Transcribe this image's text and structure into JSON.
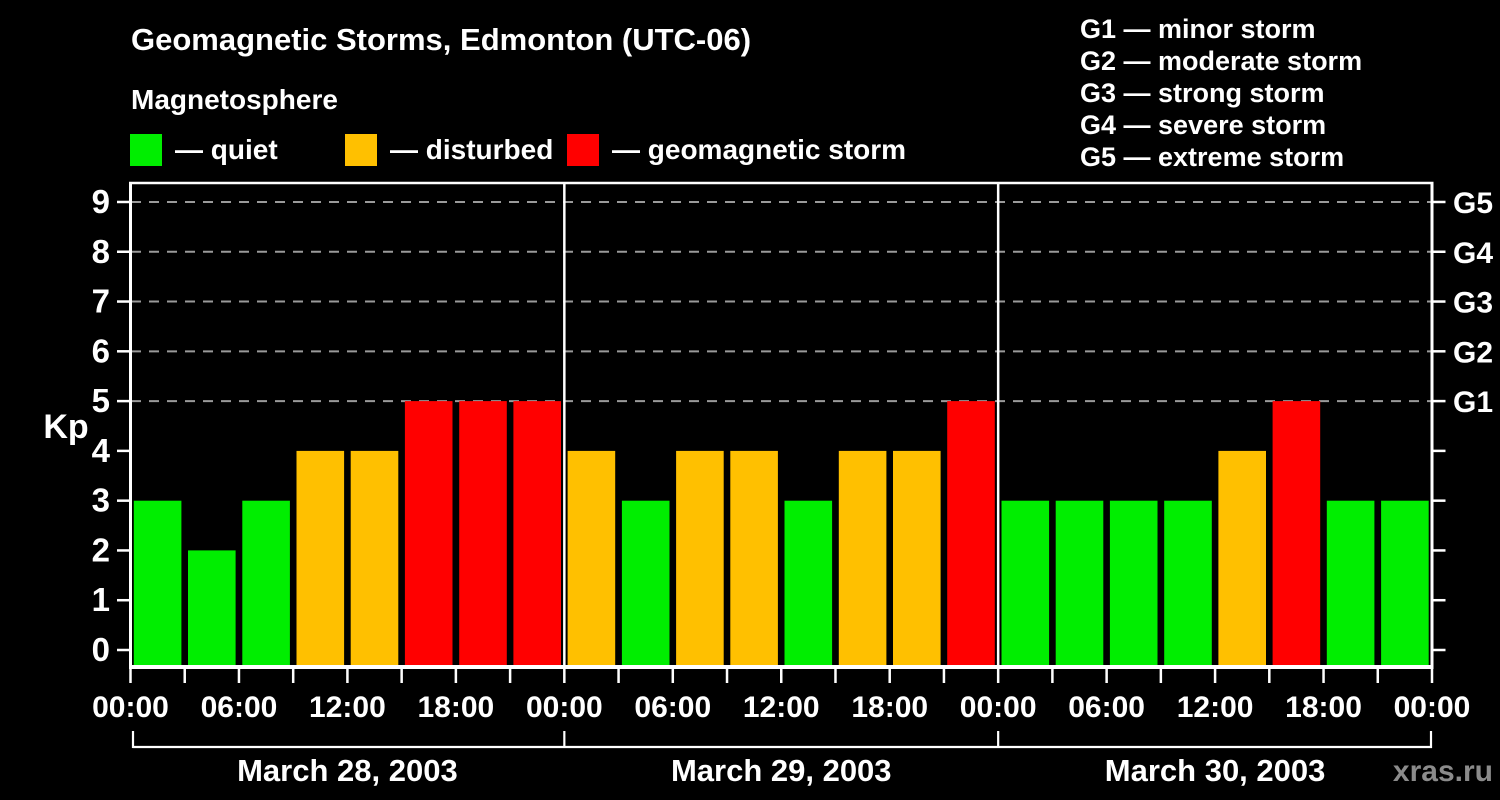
{
  "watermark": "xras.ru",
  "chart_data": {
    "type": "bar",
    "title": "Geomagnetic Storms, Edmonton (UTC-06)",
    "subtitle": "Magnetosphere",
    "ylabel": "Kp",
    "ylim": [
      0,
      9.3
    ],
    "yticks": [
      0,
      1,
      2,
      3,
      4,
      5,
      6,
      7,
      8,
      9
    ],
    "gridlines_at": [
      5,
      6,
      7,
      8,
      9
    ],
    "grid": "dashed horizontal at Kp 5-9 only",
    "legend_position": "top",
    "series_legend": [
      {
        "id": "quiet",
        "label": "— quiet",
        "color": "#00ee00"
      },
      {
        "id": "disturbed",
        "label": "— disturbed",
        "color": "#ffc000"
      },
      {
        "id": "storm",
        "label": "— geomagnetic storm",
        "color": "#ff0000"
      }
    ],
    "storm_scale_notes": [
      "G1 — minor storm",
      "G2 — moderate storm",
      "G3 — strong storm",
      "G4 — severe storm",
      "G5 — extreme storm"
    ],
    "right_axis": [
      {
        "kp": 5,
        "label": "G1"
      },
      {
        "kp": 6,
        "label": "G2"
      },
      {
        "kp": 7,
        "label": "G3"
      },
      {
        "kp": 8,
        "label": "G4"
      },
      {
        "kp": 9,
        "label": "G5"
      }
    ],
    "hours_per_bar": 3,
    "x_tick_interval_hours": 3,
    "x_label_interval_hours": 6,
    "x_tick_labels": [
      "00:00",
      "06:00",
      "12:00",
      "18:00"
    ],
    "x_end_label": "00:00",
    "bar_colors": {
      "quiet": "#00ee00",
      "disturbed": "#ffc000",
      "storm": "#ff0000"
    },
    "color_rule": {
      "disturbed_min_kp": 4,
      "storm_min_kp": 5
    },
    "days": [
      {
        "date": "March 28, 2003",
        "kp_values": [
          3,
          2,
          3,
          4,
          4,
          5,
          5,
          5
        ]
      },
      {
        "date": "March 29, 2003",
        "kp_values": [
          4,
          3,
          4,
          4,
          3,
          4,
          4,
          5
        ]
      },
      {
        "date": "March 30, 2003",
        "kp_values": [
          3,
          3,
          3,
          3,
          4,
          5,
          3,
          3
        ]
      }
    ]
  }
}
